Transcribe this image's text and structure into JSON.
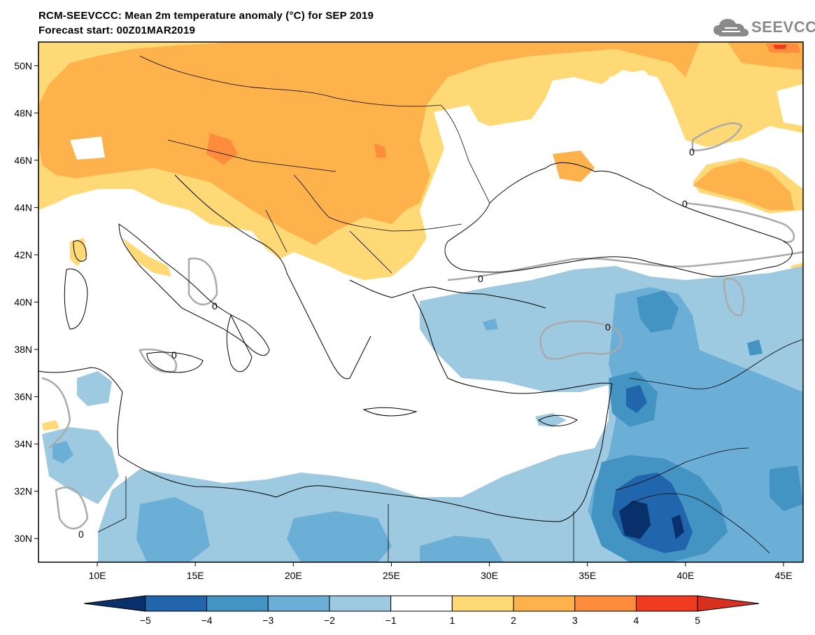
{
  "title_line1": "RCM-SEEVCCC: Mean 2m temperature anomaly (°C) for SEP 2019",
  "title_line2": "Forecast start: 00Z01MAR2019",
  "logo_text": "SEEVCCC",
  "contour_label": "0",
  "lat_ticks": [
    {
      "label": "50N",
      "value": 50
    },
    {
      "label": "48N",
      "value": 48
    },
    {
      "label": "46N",
      "value": 46
    },
    {
      "label": "44N",
      "value": 44
    },
    {
      "label": "42N",
      "value": 42
    },
    {
      "label": "40N",
      "value": 40
    },
    {
      "label": "38N",
      "value": 38
    },
    {
      "label": "36N",
      "value": 36
    },
    {
      "label": "34N",
      "value": 34
    },
    {
      "label": "32N",
      "value": 32
    },
    {
      "label": "30N",
      "value": 30
    }
  ],
  "lon_ticks": [
    {
      "label": "10E",
      "value": 10
    },
    {
      "label": "15E",
      "value": 15
    },
    {
      "label": "20E",
      "value": 20
    },
    {
      "label": "25E",
      "value": 25
    },
    {
      "label": "30E",
      "value": 30
    },
    {
      "label": "35E",
      "value": 35
    },
    {
      "label": "40E",
      "value": 40
    },
    {
      "label": "45E",
      "value": 45
    }
  ],
  "map_extent": {
    "lon_min": 7,
    "lon_max": 46,
    "lat_min": 29,
    "lat_max": 51
  },
  "colorbar": {
    "labels": [
      "−5",
      "−4",
      "−3",
      "−2",
      "−1",
      "1",
      "2",
      "3",
      "4",
      "5"
    ],
    "colors": [
      "#08306b",
      "#2166ac",
      "#4393c3",
      "#6baed6",
      "#9ecae1",
      "#ffffff",
      "#fed976",
      "#feb24c",
      "#fd8d3c",
      "#f03b20",
      "#d7301f"
    ]
  },
  "palette": {
    "land_mask": "#ffffff",
    "warm1": "#fed976",
    "warm2": "#feb24c",
    "warm3": "#fd8d3c",
    "warm4": "#f03b20",
    "cool1": "#9ecae1",
    "cool2": "#6baed6",
    "cool3": "#4393c3",
    "cool4": "#2166ac",
    "cool5": "#08306b",
    "contour": "#aaaaaa",
    "border": "#000000"
  }
}
